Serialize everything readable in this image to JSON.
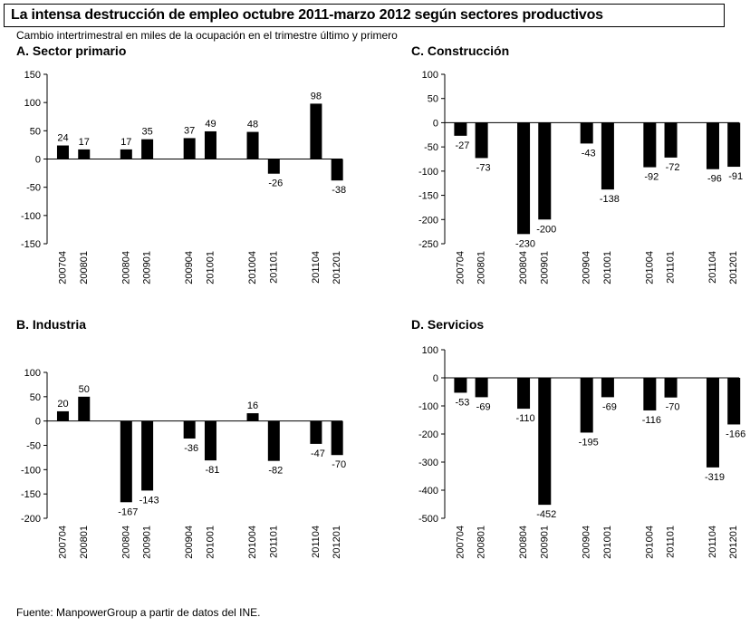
{
  "header": {
    "title": "La intensa destrucción de empleo octubre 2011-marzo 2012 según sectores productivos",
    "subtitle": "Cambio intertrimestral en miles de la ocupación en el trimestre último y primero"
  },
  "footer": {
    "source": "Fuente: ManpowerGroup a partir de datos del INE."
  },
  "colors": {
    "bar": "#000000",
    "axis": "#000000"
  },
  "chart_data": [
    {
      "type": "bar",
      "title": "A. Sector primario",
      "categories": [
        "200704",
        "200801",
        "200804",
        "200901",
        "200904",
        "201001",
        "201004",
        "201101",
        "201104",
        "201201"
      ],
      "values": [
        24,
        17,
        17,
        35,
        37,
        49,
        48,
        -26,
        98,
        -38
      ],
      "value_labels": [
        "24",
        "17",
        "17",
        "35",
        "37",
        "49",
        "48",
        "-26",
        "98",
        "-38"
      ],
      "ylim": [
        -150,
        150
      ],
      "yticks": [
        150,
        100,
        50,
        0,
        -50,
        -100,
        -150
      ],
      "grid": false,
      "legend": "none"
    },
    {
      "type": "bar",
      "title": "C. Construcción",
      "categories": [
        "200704",
        "200801",
        "200804",
        "200901",
        "200904",
        "201001",
        "201004",
        "201101",
        "201104",
        "201201"
      ],
      "values": [
        -27,
        -73,
        -230,
        -200,
        -43,
        -138,
        -92,
        -72,
        -96,
        -91
      ],
      "value_labels": [
        "-27",
        "-73",
        "-230",
        "-200",
        "-43",
        "-138",
        "-92",
        "-72",
        "-96",
        "-91"
      ],
      "ylim": [
        -250,
        100
      ],
      "yticks": [
        100,
        50,
        0,
        -50,
        -100,
        -150,
        -200,
        -250
      ],
      "grid": false,
      "legend": "none"
    },
    {
      "type": "bar",
      "title": "B. Industria",
      "categories": [
        "200704",
        "200801",
        "200804",
        "200901",
        "200904",
        "201001",
        "201004",
        "201101",
        "201104",
        "201201"
      ],
      "values": [
        20,
        50,
        -167,
        -143,
        -36,
        -81,
        16,
        -82,
        -47,
        -70
      ],
      "value_labels": [
        "20",
        "50",
        "-167",
        "-143",
        "-36",
        "-81",
        "16",
        "-82",
        "-47",
        "-70"
      ],
      "ylim": [
        -200,
        100
      ],
      "yticks": [
        100,
        50,
        0,
        -50,
        -100,
        -150,
        -200
      ],
      "grid": false,
      "legend": "none"
    },
    {
      "type": "bar",
      "title": "D. Servicios",
      "categories": [
        "200704",
        "200801",
        "200804",
        "200901",
        "200904",
        "201001",
        "201004",
        "201101",
        "201104",
        "201201"
      ],
      "values": [
        -53,
        -69,
        -110,
        -452,
        -195,
        -69,
        -116,
        -70,
        -319,
        -166
      ],
      "value_labels": [
        "-53",
        "-69",
        "-110",
        "-452",
        "-195",
        "-69",
        "-116",
        "-70",
        "-319",
        "-166"
      ],
      "ylim": [
        -500,
        100
      ],
      "yticks": [
        100,
        0,
        -100,
        -200,
        -300,
        -400,
        -500
      ],
      "grid": false,
      "legend": "none"
    }
  ]
}
